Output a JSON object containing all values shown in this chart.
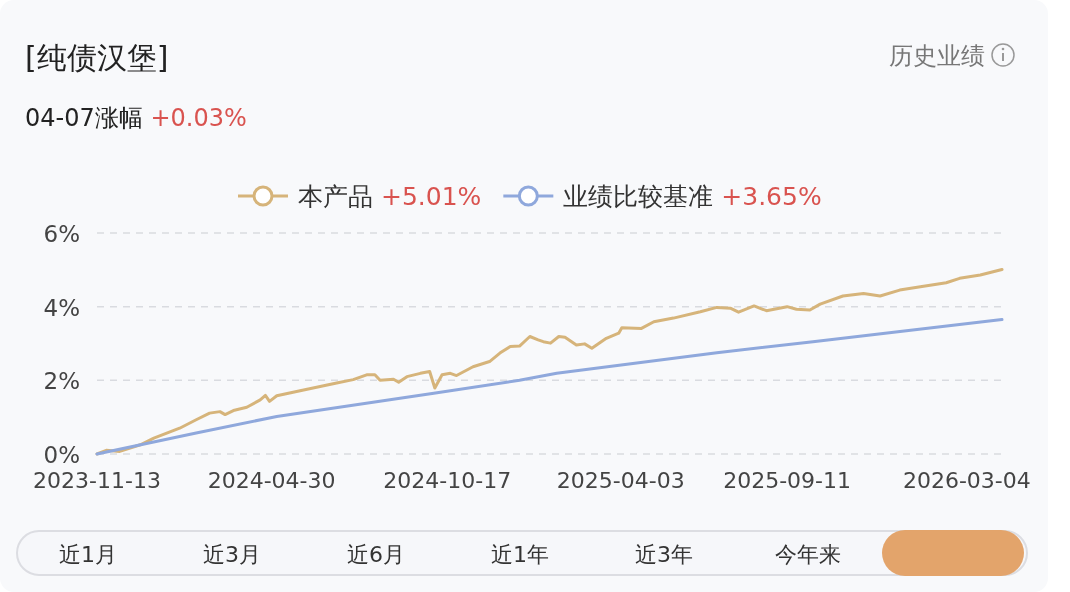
{
  "chart_data": {
    "type": "line",
    "title": "[纯债汉堡]",
    "subtitle": "04-07涨幅 +0.03%",
    "annotations": [
      "历史业绩",
      "近1月",
      "近3月",
      "近6月",
      "近1年",
      "近3年",
      "今年来"
    ],
    "xlim": [
      "2023-11-13",
      "2026-04-07"
    ],
    "xticks": [
      "2023-11-13",
      "2024-04-30",
      "2024-10-17",
      "2025-04-03",
      "2025-09-11",
      "2026-03-04"
    ],
    "ylim": [
      0,
      6
    ],
    "yticks": [
      {
        "value": 0,
        "label": "0%"
      },
      {
        "value": 2,
        "label": "2%"
      },
      {
        "value": 4,
        "label": "4%"
      },
      {
        "value": 6,
        "label": "6%"
      }
    ],
    "grid": "y",
    "legend": "top",
    "series": [
      {
        "name": "本产品 +5.01%",
        "color": "#d6b47a",
        "x": [
          "2023-11-13",
          "2023-11-22",
          "2023-12-05",
          "2023-12-25",
          "2024-01-07",
          "2024-02-01",
          "2024-02-17",
          "2024-03-01",
          "2024-03-11",
          "2024-03-16",
          "2024-03-24",
          "2024-04-06",
          "2024-04-19",
          "2024-04-24",
          "2024-04-28",
          "2024-05-05",
          "2024-05-31",
          "2024-07-02",
          "2024-07-18",
          "2024-07-31",
          "2024-08-08",
          "2024-08-13",
          "2024-08-26",
          "2024-08-31",
          "2024-09-08",
          "2024-09-21",
          "2024-09-30",
          "2024-10-05",
          "2024-10-12",
          "2024-10-20",
          "2024-10-26",
          "2024-11-11",
          "2024-11-27",
          "2024-12-07",
          "2024-12-17",
          "2024-12-26",
          "2025-01-05",
          "2025-01-13",
          "2025-01-18",
          "2025-01-25",
          "2025-02-02",
          "2025-02-08",
          "2025-02-19",
          "2025-02-27",
          "2025-03-06",
          "2025-03-20",
          "2025-04-01",
          "2025-04-04",
          "2025-04-23",
          "2025-05-05",
          "2025-05-24",
          "2025-06-19",
          "2025-07-05",
          "2025-07-18",
          "2025-07-26",
          "2025-08-10",
          "2025-08-22",
          "2025-09-11",
          "2025-09-20",
          "2025-10-03",
          "2025-10-13",
          "2025-11-04",
          "2025-11-24",
          "2025-12-10",
          "2025-12-29",
          "2026-01-18",
          "2026-02-12",
          "2026-02-25",
          "2026-03-17",
          "2026-04-07"
        ],
        "values": [
          0.0,
          0.1,
          0.07,
          0.25,
          0.43,
          0.7,
          0.93,
          1.11,
          1.15,
          1.07,
          1.18,
          1.27,
          1.47,
          1.59,
          1.43,
          1.58,
          1.74,
          1.93,
          2.02,
          2.15,
          2.15,
          2.0,
          2.03,
          1.95,
          2.1,
          2.19,
          2.24,
          1.79,
          2.15,
          2.19,
          2.13,
          2.37,
          2.51,
          2.74,
          2.92,
          2.93,
          3.19,
          3.1,
          3.05,
          3.01,
          3.19,
          3.17,
          2.96,
          2.99,
          2.87,
          3.14,
          3.28,
          3.43,
          3.41,
          3.59,
          3.69,
          3.86,
          3.98,
          3.96,
          3.85,
          4.02,
          3.89,
          4.0,
          3.93,
          3.91,
          4.07,
          4.29,
          4.36,
          4.29,
          4.45,
          4.54,
          4.65,
          4.77,
          4.86,
          5.01
        ]
      },
      {
        "name": "业绩比较基准 +3.65%",
        "color": "#8fa8dc",
        "x": [
          "2023-11-13",
          "2024-02-17",
          "2024-05-05",
          "2024-10-04",
          "2024-12-26",
          "2025-01-31",
          "2025-07-05",
          "2025-10-06",
          "2026-04-07"
        ],
        "values": [
          0.0,
          0.57,
          1.02,
          1.65,
          2.0,
          2.19,
          2.75,
          3.05,
          3.65
        ]
      }
    ]
  }
}
